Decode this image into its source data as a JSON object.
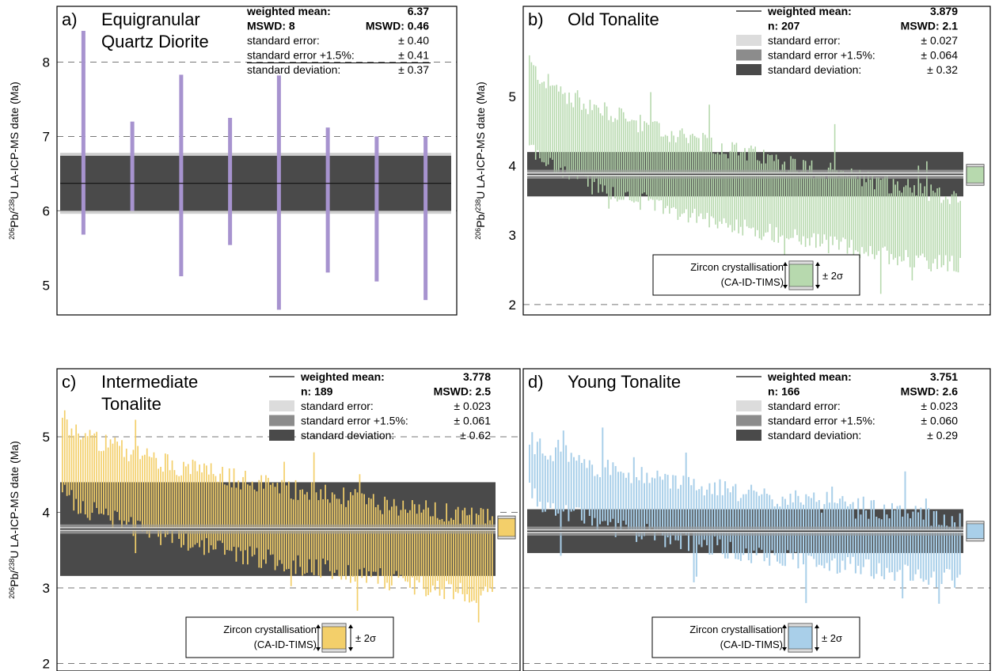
{
  "y_axis_label": {
    "sup206": "206",
    "pb": "Pb/",
    "sup238": "238",
    "rest": "U LA-ICP-MS date (Ma)"
  },
  "crystallisation_box": {
    "line1": "Zircon crystallisation",
    "line2": "(CA-ID-TIMS)",
    "sigma": "± 2σ"
  },
  "chart_data": [
    {
      "id": "a",
      "type": "bar",
      "panel_letter": "a)",
      "title_lines": [
        "Equigranular",
        "Quartz Diorite"
      ],
      "y_ticks": [
        5,
        6,
        7,
        8
      ],
      "ylim": [
        4.6,
        8.75
      ],
      "dashed_y": [
        6,
        7,
        8
      ],
      "color": "#a793cf",
      "weighted_mean": 6.37,
      "band_standard_error": 0.4,
      "band_standard_error_plus": 0.41,
      "band_standard_deviation": 0.37,
      "legend_rows": [
        {
          "label": "weighted mean:",
          "value": "6.37",
          "bold": true,
          "swatch": ""
        },
        {
          "label": "MSWD:  8",
          "value": "MSWD:  0.46",
          "bold": true,
          "swatch": ""
        },
        {
          "label": "standard error:",
          "value": "± 0.40",
          "bold": false,
          "swatch": ""
        },
        {
          "label": "standard error +1.5%:",
          "value": "± 0.41",
          "bold": false,
          "swatch": ""
        },
        {
          "label": "standard deviation:",
          "value": "± 0.37",
          "bold": false,
          "swatch": ""
        }
      ],
      "analyses": [
        {
          "lo": 5.68,
          "hi": 8.42
        },
        {
          "lo": 6.0,
          "hi": 7.2
        },
        {
          "lo": 5.12,
          "hi": 7.83
        },
        {
          "lo": 5.54,
          "hi": 7.25
        },
        {
          "lo": 4.67,
          "hi": 7.82
        },
        {
          "lo": 5.17,
          "hi": 7.12
        },
        {
          "lo": 5.05,
          "hi": 7.0
        },
        {
          "lo": 4.8,
          "hi": 7.0
        }
      ],
      "show_tims": false
    },
    {
      "id": "b",
      "type": "bar",
      "panel_letter": "b)",
      "title_lines": [
        "Old Tonalite"
      ],
      "y_ticks": [
        2,
        3,
        4,
        5
      ],
      "ylim": [
        1.85,
        6.3
      ],
      "dashed_y": [
        2
      ],
      "color": "#b7d9ae",
      "weighted_mean": 3.879,
      "band_standard_error": 0.027,
      "band_standard_error_plus": 0.064,
      "band_standard_deviation": 0.32,
      "legend_rows": [
        {
          "label": "weighted mean:",
          "value": "3.879",
          "bold": true,
          "swatch": "line"
        },
        {
          "label": "n:  207",
          "value": "MSWD:  2.1",
          "bold": true,
          "swatch": ""
        },
        {
          "label": "standard error:",
          "value": "± 0.027",
          "bold": false,
          "swatch": "#dcdcdc"
        },
        {
          "label": "standard error +1.5%:",
          "value": "± 0.064",
          "bold": false,
          "swatch": "#8c8c8c"
        },
        {
          "label": "standard deviation:",
          "value": "± 0.32",
          "bold": false,
          "swatch": "#4a4a4a"
        }
      ],
      "series_summary": {
        "n": 207,
        "hi_start": 5.55,
        "hi_end": 3.55,
        "lo_start": 4.35,
        "lo_end": 2.55
      },
      "tims": {
        "lo": 3.72,
        "hi": 4.02
      },
      "show_tims": true
    },
    {
      "id": "c",
      "type": "bar",
      "panel_letter": "c)",
      "title_lines": [
        "Intermediate",
        "Tonalite"
      ],
      "y_ticks": [
        2,
        3,
        4,
        5
      ],
      "ylim": [
        1.9,
        5.9
      ],
      "dashed_y": [
        2,
        3,
        4,
        5
      ],
      "color": "#f3cf6a",
      "weighted_mean": 3.778,
      "band_standard_error": 0.023,
      "band_standard_error_plus": 0.061,
      "band_standard_deviation": 0.62,
      "legend_rows": [
        {
          "label": "weighted mean:",
          "value": "3.778",
          "bold": true,
          "swatch": "line"
        },
        {
          "label": "n:  189",
          "value": "MSWD:  2.5",
          "bold": true,
          "swatch": ""
        },
        {
          "label": "standard error:",
          "value": "± 0.023",
          "bold": false,
          "swatch": "#dcdcdc"
        },
        {
          "label": "standard error +1.5%:",
          "value": "± 0.061",
          "bold": false,
          "swatch": "#8c8c8c"
        },
        {
          "label": "standard deviation:",
          "value": "± 0.62",
          "bold": false,
          "swatch": "#4a4a4a"
        }
      ],
      "series_summary": {
        "n": 189,
        "hi_start": 5.3,
        "hi_end": 3.9,
        "lo_start": 4.35,
        "lo_end": 2.9
      },
      "tims": {
        "lo": 3.65,
        "hi": 3.95
      },
      "show_tims": true
    },
    {
      "id": "d",
      "type": "bar",
      "panel_letter": "d)",
      "title_lines": [
        "Young Tonalite"
      ],
      "y_ticks": [],
      "ylim": [
        1.9,
        5.9
      ],
      "dashed_y": [
        2,
        3
      ],
      "color": "#a9cfe9",
      "weighted_mean": 3.751,
      "band_standard_error": 0.023,
      "band_standard_error_plus": 0.06,
      "band_standard_deviation": 0.29,
      "legend_rows": [
        {
          "label": "weighted mean:",
          "value": "3.751",
          "bold": true,
          "swatch": "line"
        },
        {
          "label": "n:  166",
          "value": "MSWD:  2.6",
          "bold": true,
          "swatch": ""
        },
        {
          "label": "standard error:",
          "value": "± 0.023",
          "bold": false,
          "swatch": "#dcdcdc"
        },
        {
          "label": "standard error +1.5%:",
          "value": "± 0.060",
          "bold": false,
          "swatch": "#8c8c8c"
        },
        {
          "label": "standard deviation:",
          "value": "± 0.29",
          "bold": false,
          "swatch": "#4a4a4a"
        }
      ],
      "series_summary": {
        "n": 166,
        "hi_start": 5.0,
        "hi_end": 3.9,
        "lo_start": 4.3,
        "lo_end": 3.1
      },
      "tims": {
        "lo": 3.62,
        "hi": 3.88
      },
      "show_tims": true
    }
  ]
}
